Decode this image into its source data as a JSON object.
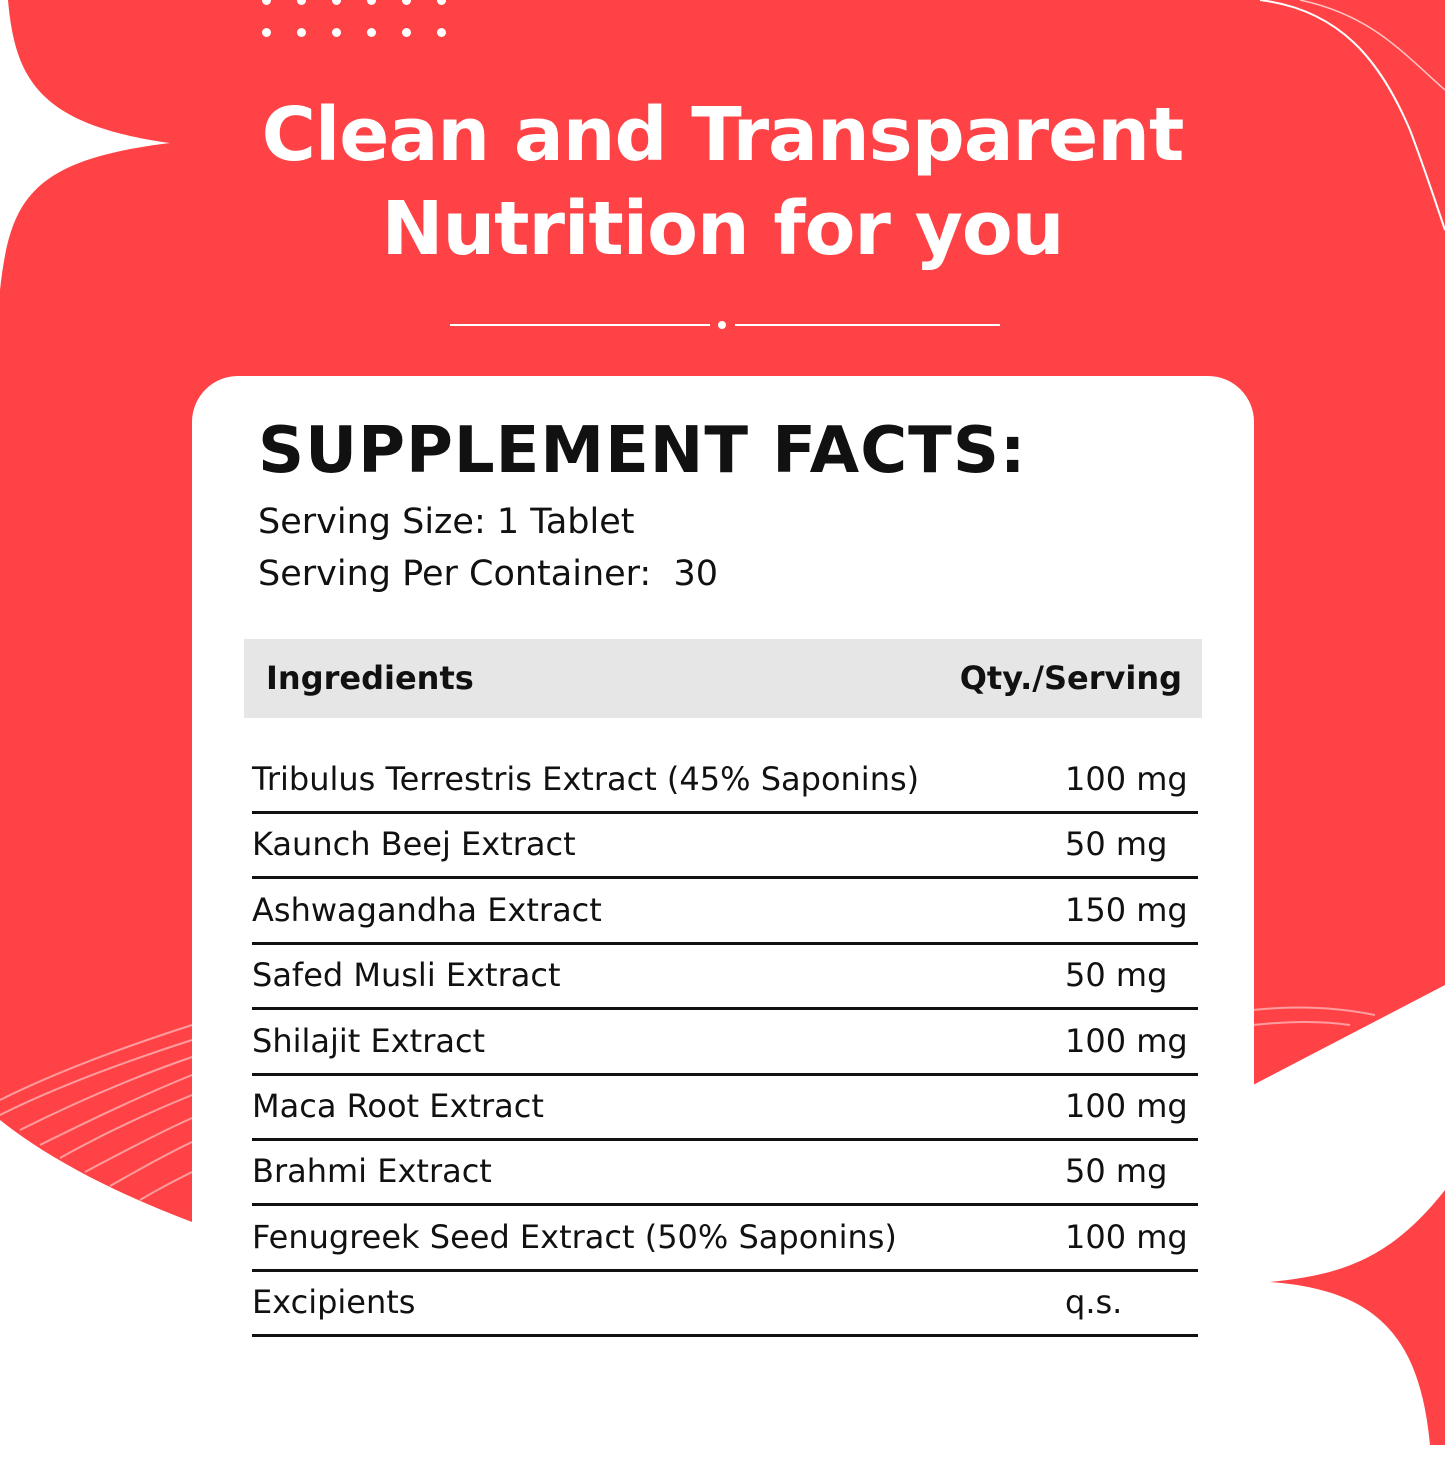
{
  "colors": {
    "brand_red": "#FF4246",
    "text": "#111111",
    "header_bg": "#E6E6E6"
  },
  "headline": {
    "line1": "Clean and Transparent",
    "line2": "Nutrition for you"
  },
  "facts": {
    "title": "SUPPLEMENT FACTS:",
    "serving_size": "Serving Size: 1 Tablet",
    "serving_per_container": "Serving Per Container:  30",
    "columns": {
      "ingredient": "Ingredients",
      "qty": "Qty./Serving"
    },
    "rows": [
      {
        "name": "Tribulus Terrestris Extract (45% Saponins)",
        "qty": "100 mg"
      },
      {
        "name": "Kaunch Beej Extract",
        "qty": "50 mg"
      },
      {
        "name": "Ashwagandha Extract",
        "qty": "150 mg"
      },
      {
        "name": "Safed Musli Extract",
        "qty": "50 mg"
      },
      {
        "name": "Shilajit Extract",
        "qty": "100 mg"
      },
      {
        "name": "Maca Root Extract",
        "qty": "100 mg"
      },
      {
        "name": "Brahmi Extract",
        "qty": "50 mg"
      },
      {
        "name": "Fenugreek Seed Extract (50% Saponins)",
        "qty": "100 mg"
      },
      {
        "name": "Excipients",
        "qty": "q.s."
      }
    ]
  }
}
